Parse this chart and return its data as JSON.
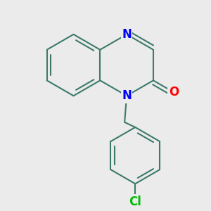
{
  "bg_color": "#ebebeb",
  "bond_color": "#3d7a6b",
  "N_color": "#0000ff",
  "O_color": "#ff0000",
  "Cl_color": "#00bb00",
  "bond_width": 1.5,
  "font_size": 12,
  "figsize": [
    3.0,
    3.0
  ],
  "dpi": 100,
  "xlim": [
    -2.0,
    2.0
  ],
  "ylim": [
    -2.8,
    2.0
  ]
}
